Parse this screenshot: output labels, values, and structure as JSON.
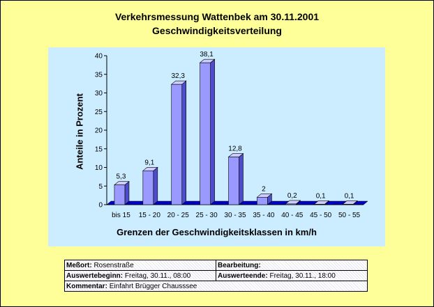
{
  "chart_data": {
    "type": "bar",
    "title": "Verkehrsmessung Wattenbek am 30.11.2001",
    "subtitle": "Geschwindigkeitsverteilung",
    "xlabel": "Grenzen der Geschwindigkeitsklassen in km/h",
    "ylabel": "Anteile in Prozent",
    "categories": [
      "bis 15",
      "15 - 20",
      "20 - 25",
      "25 - 30",
      "30 - 35",
      "35 - 40",
      "40 - 45",
      "45 - 50",
      "50 - 55"
    ],
    "values": [
      5.3,
      9.1,
      32.3,
      38.1,
      12.8,
      2,
      0.2,
      0.1,
      0.1
    ],
    "data_labels": [
      "5,3",
      "9,1",
      "32,3",
      "38,1",
      "12,8",
      "2",
      "0,2",
      "0,1",
      "0,1"
    ],
    "yticks": [
      "0",
      "5",
      "10",
      "15",
      "20",
      "25",
      "30",
      "35",
      "40"
    ],
    "ylim": [
      0,
      40
    ],
    "grid": false,
    "legend": "none",
    "colors": {
      "bar_front": "#9999ff",
      "bar_side": "#4d4dcc",
      "bar_top": "#ccccff",
      "floor": "#0000cc",
      "plot_bg": "#ccecff",
      "page_bg": "#ffff99"
    }
  },
  "info": {
    "messort_label": "Meßort:",
    "messort_value": "Rosenstraße",
    "bearbeitung_label": "Bearbeitung:",
    "bearbeitung_value": "",
    "auswertebeginn_label": "Auswertebeginn:",
    "auswertebeginn_value": "Freitag, 30.11., 08:00",
    "auswerteende_label": "Auswerteende:",
    "auswerteende_value": "Freitag, 30.11., 18:00",
    "kommentar_label": "Kommentar:",
    "kommentar_value": "Einfahrt Brügger Chausssee"
  }
}
